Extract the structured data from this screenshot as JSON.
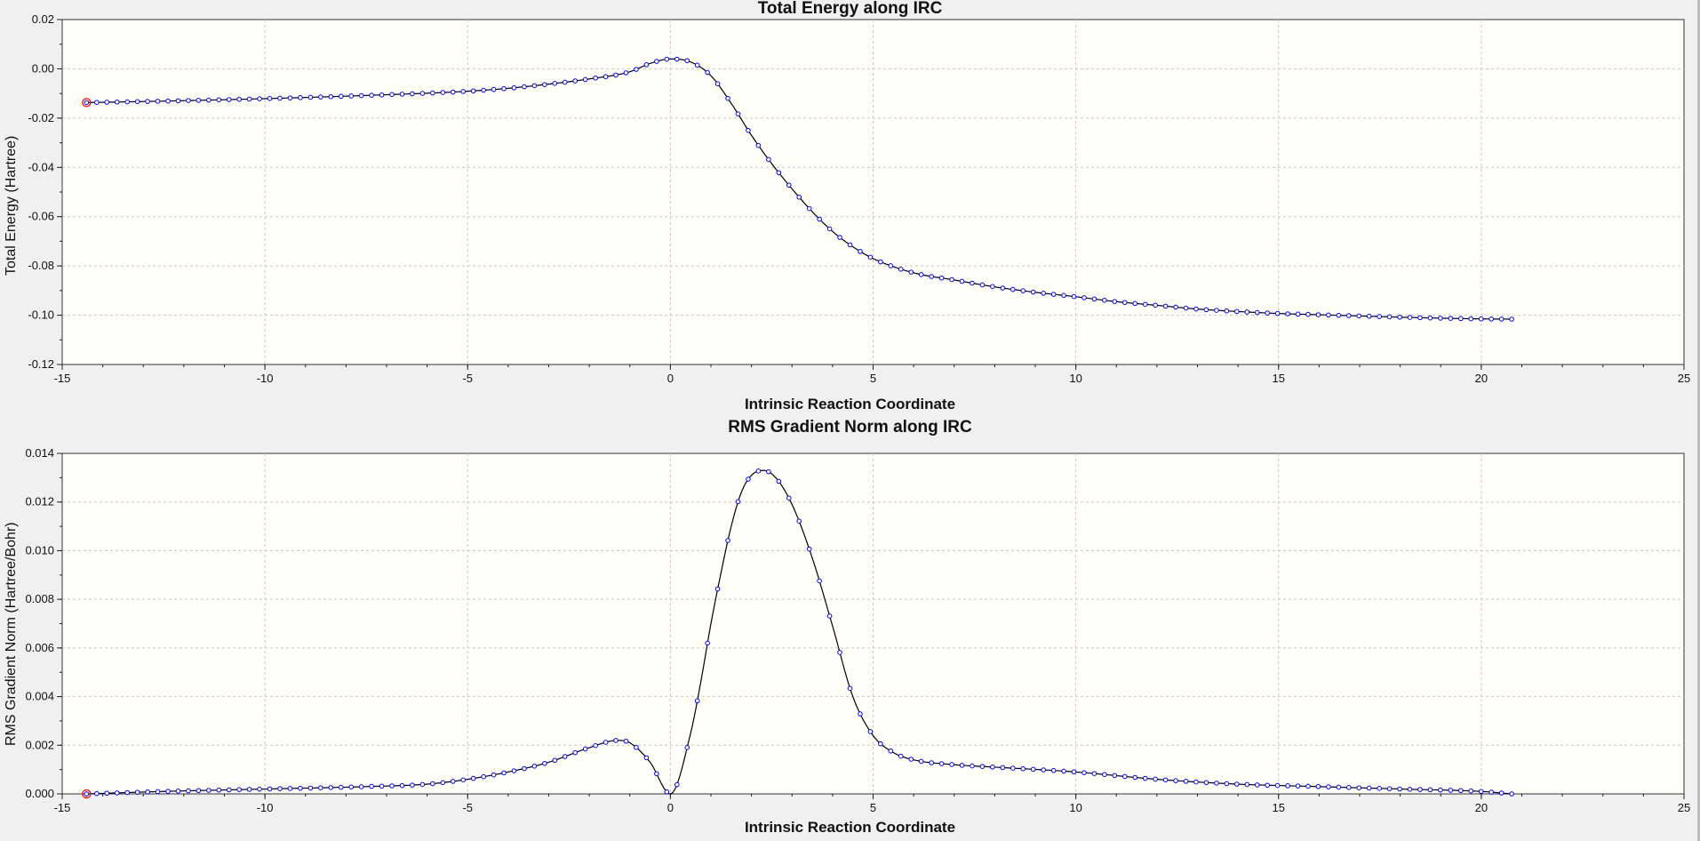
{
  "colors": {
    "plot_bg": "#fffff7",
    "grid": "#c8c8c8",
    "line": "#000000",
    "marker": "#0000ff",
    "start_marker": "#ff0000"
  },
  "chart_data": [
    {
      "type": "line",
      "title": "Total Energy along IRC",
      "xlabel": "Intrinsic Reaction Coordinate",
      "ylabel": "Total Energy (Hartree)",
      "xlim": [
        -15,
        25
      ],
      "ylim": [
        -0.12,
        0.02
      ],
      "xticks": [
        "-15",
        "-10",
        "-5",
        "0",
        "5",
        "10",
        "15",
        "20",
        "25"
      ],
      "yticks": [
        "0.02",
        "0.00",
        "-0.02",
        "-0.04",
        "-0.06",
        "-0.08",
        "-0.10",
        "-0.12"
      ],
      "grid": true,
      "markers": "open circles",
      "start_point": [
        -14.4,
        -0.0137
      ],
      "curve": [
        [
          -14.4,
          -0.0137
        ],
        [
          -12.5,
          -0.0131
        ],
        [
          -10,
          -0.0121
        ],
        [
          -7.5,
          -0.0108
        ],
        [
          -5,
          -0.0091
        ],
        [
          -4,
          -0.0079
        ],
        [
          -3,
          -0.0062
        ],
        [
          -2,
          -0.0041
        ],
        [
          -1,
          -0.0012
        ],
        [
          -0.5,
          0.0022
        ],
        [
          0,
          0.004
        ],
        [
          0.5,
          0.0028
        ],
        [
          1,
          -0.0028
        ],
        [
          1.5,
          -0.014
        ],
        [
          2,
          -0.027
        ],
        [
          2.5,
          -0.0385
        ],
        [
          3,
          -0.0487
        ],
        [
          3.5,
          -0.058
        ],
        [
          4,
          -0.066
        ],
        [
          4.5,
          -0.0722
        ],
        [
          5,
          -0.077
        ],
        [
          6,
          -0.0828
        ],
        [
          7,
          -0.0857
        ],
        [
          8,
          -0.0885
        ],
        [
          9,
          -0.0907
        ],
        [
          10,
          -0.0925
        ],
        [
          11,
          -0.0945
        ],
        [
          12,
          -0.096
        ],
        [
          13,
          -0.0975
        ],
        [
          14,
          -0.0985
        ],
        [
          15,
          -0.0993
        ],
        [
          16,
          -0.0998
        ],
        [
          17,
          -0.1003
        ],
        [
          18,
          -0.1008
        ],
        [
          19,
          -0.1012
        ],
        [
          20,
          -0.1015
        ],
        [
          20.75,
          -0.1016
        ]
      ]
    },
    {
      "type": "line",
      "title": "RMS Gradient Norm along IRC",
      "xlabel": "Intrinsic Reaction Coordinate",
      "ylabel": "RMS Gradient Norm (Hartree/Bohr)",
      "xlim": [
        -15,
        25
      ],
      "ylim": [
        0,
        0.014
      ],
      "xticks": [
        "-15",
        "-10",
        "-5",
        "0",
        "5",
        "10",
        "15",
        "20",
        "25"
      ],
      "yticks": [
        "0.014",
        "0.012",
        "0.010",
        "0.008",
        "0.006",
        "0.004",
        "0.002",
        "0.000"
      ],
      "grid": true,
      "markers": "open circles",
      "start_point": [
        -14.4,
        0.0
      ],
      "curve": [
        [
          -14.4,
          0.0
        ],
        [
          -12.5,
          0.0001
        ],
        [
          -10,
          0.0002
        ],
        [
          -7.5,
          0.0003
        ],
        [
          -6,
          0.0004
        ],
        [
          -5,
          0.0006
        ],
        [
          -4,
          0.0009
        ],
        [
          -3,
          0.0013
        ],
        [
          -2,
          0.0019
        ],
        [
          -1.3,
          0.0022
        ],
        [
          -1,
          0.0021
        ],
        [
          -0.5,
          0.0013
        ],
        [
          0,
          0.0
        ],
        [
          0.5,
          0.0025
        ],
        [
          0.75,
          0.0046
        ],
        [
          1,
          0.007
        ],
        [
          1.25,
          0.0091
        ],
        [
          1.5,
          0.011
        ],
        [
          1.75,
          0.0124
        ],
        [
          2,
          0.0131
        ],
        [
          2.3,
          0.0133
        ],
        [
          2.6,
          0.013
        ],
        [
          3,
          0.0119
        ],
        [
          3.5,
          0.0097
        ],
        [
          4,
          0.0069
        ],
        [
          4.5,
          0.004
        ],
        [
          5,
          0.0024
        ],
        [
          5.5,
          0.0017
        ],
        [
          6,
          0.0014
        ],
        [
          7,
          0.0012
        ],
        [
          8,
          0.0011
        ],
        [
          10,
          0.0009
        ],
        [
          12,
          0.0006
        ],
        [
          14,
          0.0004
        ],
        [
          16,
          0.0003
        ],
        [
          18,
          0.0002
        ],
        [
          20,
          0.0001
        ],
        [
          20.75,
          0.0
        ]
      ]
    }
  ]
}
